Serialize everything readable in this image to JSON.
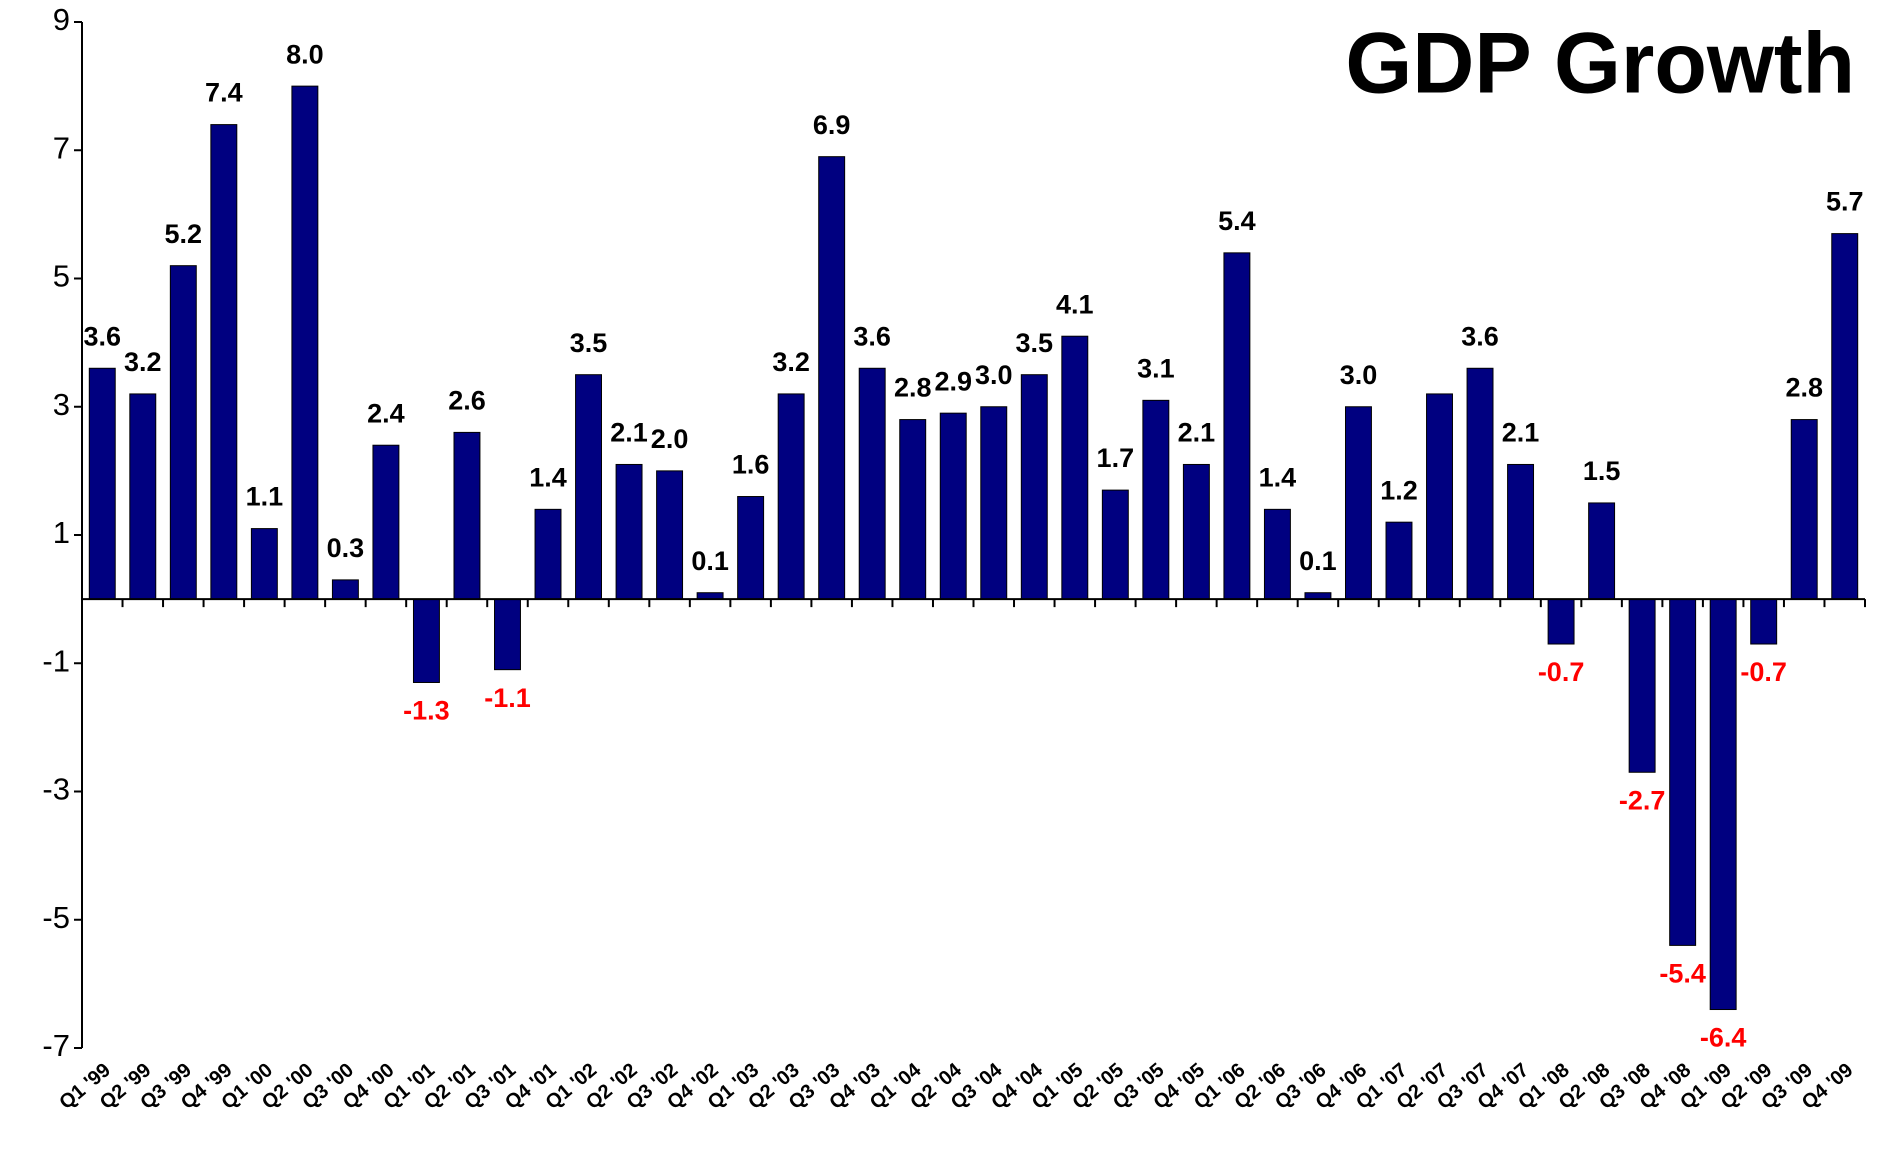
{
  "chart_data": {
    "type": "bar",
    "title": "GDP Growth",
    "categories": [
      "Q1 '99",
      "Q2 '99",
      "Q3 '99",
      "Q4 '99",
      "Q1 '00",
      "Q2 '00",
      "Q3 '00",
      "Q4 '00",
      "Q1 '01",
      "Q2 '01",
      "Q3 '01",
      "Q4 '01",
      "Q1 '02",
      "Q2 '02",
      "Q3 '02",
      "Q4 '02",
      "Q1 '03",
      "Q2 '03",
      "Q3 '03",
      "Q4 '03",
      "Q1 '04",
      "Q2 '04",
      "Q3 '04",
      "Q4 '04",
      "Q1 '05",
      "Q2 '05",
      "Q3 '05",
      "Q4 '05",
      "Q1 '06",
      "Q2 '06",
      "Q3 '06",
      "Q4 '06",
      "Q1 '07",
      "Q2 '07",
      "Q3 '07",
      "Q4 '07",
      "Q1 '08",
      "Q2 '08",
      "Q3 '08",
      "Q4 '08",
      "Q1 '09",
      "Q2 '09",
      "Q3 '09",
      "Q4 '09"
    ],
    "values": [
      3.6,
      3.2,
      5.2,
      7.4,
      1.1,
      8.0,
      0.3,
      2.4,
      -1.3,
      2.6,
      -1.1,
      1.4,
      3.5,
      2.1,
      2.0,
      0.1,
      1.6,
      3.2,
      6.9,
      3.6,
      2.8,
      2.9,
      3.0,
      3.5,
      4.1,
      1.7,
      3.1,
      2.1,
      5.4,
      1.4,
      0.1,
      3.0,
      1.2,
      3.2,
      3.6,
      2.1,
      -0.7,
      1.5,
      -2.7,
      -5.4,
      -6.4,
      -0.7,
      2.8,
      5.7
    ],
    "value_labels": [
      "3.6",
      "3.2",
      "5.2",
      "7.4",
      "1.1",
      "8.0",
      "0.3",
      "2.4",
      "-1.3",
      "2.6",
      "-1.1",
      "1.4",
      "3.5",
      "2.1",
      "2.0",
      "0.1",
      "1.6",
      "3.2",
      "6.9",
      "3.6",
      "2.8",
      "2.9",
      "3.0",
      "3.5",
      "4.1",
      "1.7",
      "3.1",
      "2.1",
      "5.4",
      "1.4",
      "0.1",
      "3.0",
      "1.2",
      null,
      "3.6",
      "2.1",
      "-0.7",
      "1.5",
      "-2.7",
      "-5.4",
      "-6.4",
      "-0.7",
      "2.8",
      "5.7"
    ],
    "color": "#000080",
    "label_color": "#000000",
    "negative_label_color": "#ff0000",
    "ylim": [
      -7,
      9
    ],
    "yticks": [
      9,
      7,
      5,
      3,
      1,
      -1,
      -3,
      -5,
      -7
    ],
    "grid": false
  }
}
